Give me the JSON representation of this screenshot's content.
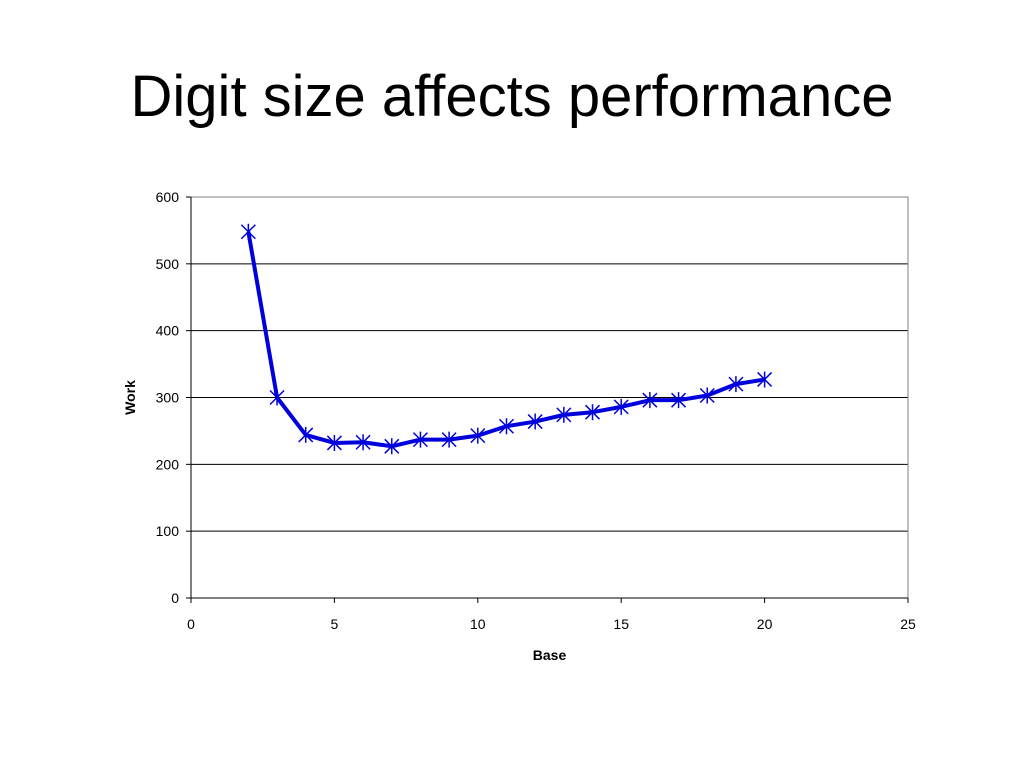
{
  "slide": {
    "title": "Digit size affects performance"
  },
  "chart_data": {
    "type": "line",
    "title": "",
    "xlabel": "Base",
    "ylabel": "Work",
    "xlim": [
      0,
      25
    ],
    "ylim": [
      0,
      600
    ],
    "xticks": [
      0,
      5,
      10,
      15,
      20,
      25
    ],
    "yticks": [
      0,
      100,
      200,
      300,
      400,
      500,
      600
    ],
    "grid": "horizontal",
    "legend": "none",
    "marker": "asterisk",
    "series": [
      {
        "color": "#0000dd",
        "x": [
          2,
          3,
          4,
          5,
          6,
          7,
          8,
          9,
          10,
          11,
          12,
          13,
          14,
          15,
          16,
          17,
          18,
          19,
          20
        ],
        "y": [
          548,
          300,
          244,
          232,
          233,
          227,
          237,
          237,
          243,
          257,
          264,
          274,
          278,
          286,
          296,
          296,
          303,
          320,
          327
        ]
      }
    ]
  }
}
